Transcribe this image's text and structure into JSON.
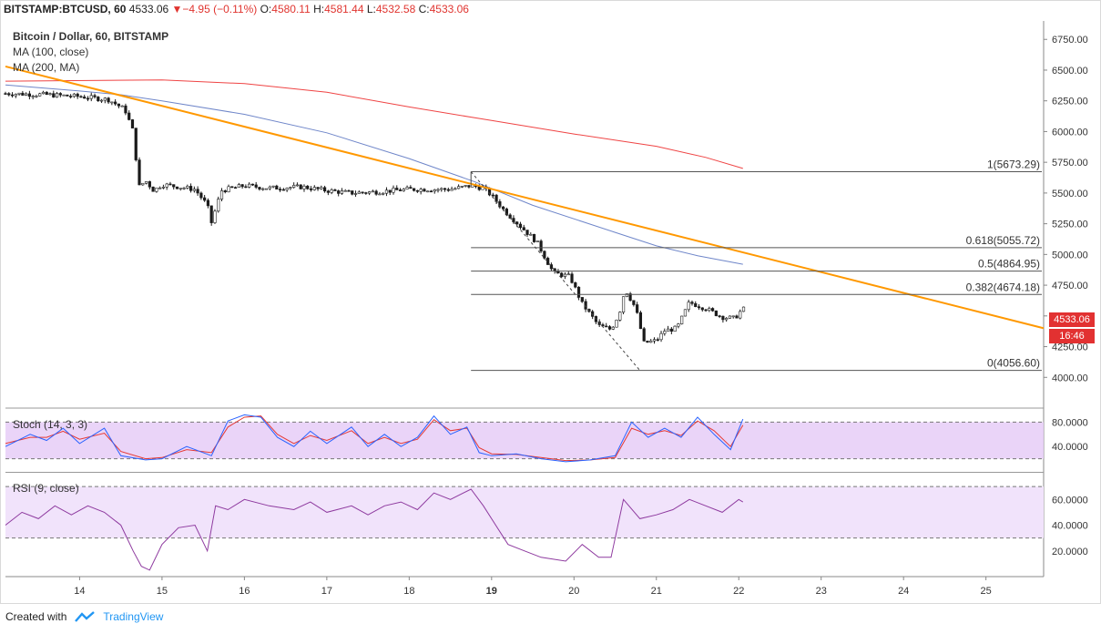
{
  "header": {
    "symbol": "BITSTAMP:BTCUSD, 60",
    "last": "4533.06",
    "change": "▼−4.95 (−0.11%)",
    "o_label": "O:",
    "o": "4580.11",
    "h_label": "H:",
    "h": "4581.44",
    "l_label": "L:",
    "l": "4532.58",
    "c_label": "C:",
    "c": "4533.06"
  },
  "legend": {
    "title": "Bitcoin / Dollar, 60, BITSTAMP",
    "ma100": "MA (100, close)",
    "ma200": "MA (200, MA)"
  },
  "price_tag": {
    "price": "4533.06",
    "countdown": "16:46"
  },
  "stoch_label": "Stoch (14, 3, 3)",
  "rsi_label": "RSI (9, close)",
  "footer": {
    "created": "Created with",
    "brand": "TradingView"
  },
  "colors": {
    "up": "#26a69a",
    "down": "#e0342f",
    "candle": "#1b1b1b",
    "ma100": "#6f86c9",
    "ma200": "#ef4444",
    "trend": "#ff9800",
    "stoch_k": "#2962ff",
    "stoch_d": "#e53935",
    "rsi": "#8e3a9f",
    "panel": "#e6cdf7"
  },
  "chart_data": [
    {
      "type": "candlestick",
      "title": "Bitcoin / Dollar, 60, BITSTAMP",
      "ylim": [
        3750,
        6900
      ],
      "y_ticks": [
        "6750.00",
        "6500.00",
        "6250.00",
        "6000.00",
        "5750.00",
        "5500.00",
        "5250.00",
        "5000.00",
        "4750.00",
        "4500.00",
        "4250.00",
        "4000.00"
      ],
      "y_tick_values": [
        6750,
        6500,
        6250,
        6000,
        5750,
        5500,
        5250,
        5000,
        4750,
        4500,
        4250,
        4000
      ],
      "x_ticks": [
        "14",
        "15",
        "16",
        "17",
        "18",
        "19",
        "20",
        "21",
        "22",
        "23",
        "24",
        "25"
      ],
      "x_tick_values": [
        14,
        15,
        16,
        17,
        18,
        19,
        20,
        21,
        22,
        23,
        24,
        25
      ],
      "xlim": [
        13.1,
        25.7
      ],
      "close_path": [
        [
          13.1,
          6310
        ],
        [
          13.6,
          6300
        ],
        [
          14.0,
          6285
        ],
        [
          14.35,
          6260
        ],
        [
          14.55,
          6180
        ],
        [
          14.65,
          6000
        ],
        [
          14.72,
          5550
        ],
        [
          14.8,
          5600
        ],
        [
          14.9,
          5520
        ],
        [
          15.0,
          5570
        ],
        [
          15.2,
          5550
        ],
        [
          15.4,
          5530
        ],
        [
          15.55,
          5400
        ],
        [
          15.6,
          5260
        ],
        [
          15.72,
          5520
        ],
        [
          16.0,
          5560
        ],
        [
          16.3,
          5540
        ],
        [
          16.7,
          5550
        ],
        [
          17.0,
          5520
        ],
        [
          17.3,
          5500
        ],
        [
          17.6,
          5510
        ],
        [
          18.0,
          5530
        ],
        [
          18.5,
          5530
        ],
        [
          18.75,
          5560
        ],
        [
          18.9,
          5540
        ],
        [
          19.0,
          5480
        ],
        [
          19.15,
          5360
        ],
        [
          19.35,
          5230
        ],
        [
          19.55,
          5100
        ],
        [
          19.75,
          4850
        ],
        [
          19.95,
          4820
        ],
        [
          20.1,
          4600
        ],
        [
          20.3,
          4420
        ],
        [
          20.45,
          4390
        ],
        [
          20.55,
          4520
        ],
        [
          20.62,
          4720
        ],
        [
          20.75,
          4560
        ],
        [
          20.85,
          4280
        ],
        [
          21.0,
          4300
        ],
        [
          21.1,
          4380
        ],
        [
          21.25,
          4400
        ],
        [
          21.4,
          4610
        ],
        [
          21.6,
          4560
        ],
        [
          21.8,
          4490
        ],
        [
          21.95,
          4480
        ],
        [
          22.05,
          4560
        ],
        [
          22.1,
          4533
        ]
      ],
      "ma100": [
        [
          13.1,
          6380
        ],
        [
          14.0,
          6330
        ],
        [
          14.5,
          6300
        ],
        [
          15.0,
          6250
        ],
        [
          16.0,
          6140
        ],
        [
          17.0,
          5990
        ],
        [
          18.0,
          5780
        ],
        [
          18.8,
          5590
        ],
        [
          19.5,
          5400
        ],
        [
          20.5,
          5180
        ],
        [
          21.0,
          5070
        ],
        [
          21.5,
          4990
        ],
        [
          22.05,
          4920
        ]
      ],
      "ma200": [
        [
          13.1,
          6410
        ],
        [
          15.0,
          6420
        ],
        [
          16.0,
          6390
        ],
        [
          17.0,
          6320
        ],
        [
          18.0,
          6200
        ],
        [
          19.0,
          6090
        ],
        [
          20.0,
          5980
        ],
        [
          21.0,
          5880
        ],
        [
          21.6,
          5790
        ],
        [
          22.05,
          5700
        ]
      ],
      "trendline": [
        [
          13.1,
          6530
        ],
        [
          25.7,
          4400
        ]
      ],
      "fibonacci": {
        "from": 18.75,
        "to": 25.7,
        "levels": [
          {
            "label": "1(5673.29)",
            "value": 5673.29
          },
          {
            "label": "0.618(5055.72)",
            "value": 5055.72
          },
          {
            "label": "0.5(4864.95)",
            "value": 4864.95
          },
          {
            "label": "0.382(4674.18)",
            "value": 4674.18
          },
          {
            "label": "0(4056.60)",
            "value": 4056.6
          }
        ],
        "diagonal": [
          [
            18.75,
            5673.29
          ],
          [
            20.8,
            4056.6
          ]
        ]
      }
    },
    {
      "type": "line",
      "title": "Stoch (14, 3, 3)",
      "ylim": [
        0,
        100
      ],
      "y_ticks": [
        "80.0000",
        "40.0000"
      ],
      "y_tick_values": [
        80,
        40
      ],
      "bands": [
        80,
        20
      ],
      "series": [
        {
          "name": "%K",
          "points": [
            [
              13.1,
              40
            ],
            [
              13.4,
              60
            ],
            [
              13.6,
              50
            ],
            [
              13.8,
              70
            ],
            [
              14.0,
              45
            ],
            [
              14.3,
              70
            ],
            [
              14.5,
              25
            ],
            [
              14.8,
              18
            ],
            [
              15.0,
              20
            ],
            [
              15.3,
              40
            ],
            [
              15.6,
              25
            ],
            [
              15.8,
              82
            ],
            [
              16.0,
              92
            ],
            [
              16.2,
              88
            ],
            [
              16.4,
              55
            ],
            [
              16.6,
              40
            ],
            [
              16.8,
              65
            ],
            [
              17.0,
              45
            ],
            [
              17.3,
              72
            ],
            [
              17.5,
              40
            ],
            [
              17.7,
              60
            ],
            [
              17.9,
              40
            ],
            [
              18.1,
              55
            ],
            [
              18.3,
              90
            ],
            [
              18.5,
              60
            ],
            [
              18.7,
              72
            ],
            [
              18.85,
              30
            ],
            [
              19.0,
              25
            ],
            [
              19.3,
              28
            ],
            [
              19.6,
              20
            ],
            [
              19.9,
              15
            ],
            [
              20.2,
              18
            ],
            [
              20.5,
              25
            ],
            [
              20.7,
              80
            ],
            [
              20.9,
              55
            ],
            [
              21.1,
              70
            ],
            [
              21.3,
              55
            ],
            [
              21.5,
              88
            ],
            [
              21.7,
              60
            ],
            [
              21.9,
              35
            ],
            [
              22.05,
              85
            ]
          ]
        },
        {
          "name": "%D",
          "points": [
            [
              13.1,
              45
            ],
            [
              13.4,
              55
            ],
            [
              13.6,
              55
            ],
            [
              13.8,
              65
            ],
            [
              14.0,
              52
            ],
            [
              14.3,
              62
            ],
            [
              14.5,
              32
            ],
            [
              14.8,
              20
            ],
            [
              15.0,
              22
            ],
            [
              15.3,
              35
            ],
            [
              15.6,
              30
            ],
            [
              15.8,
              72
            ],
            [
              16.0,
              88
            ],
            [
              16.2,
              90
            ],
            [
              16.4,
              60
            ],
            [
              16.6,
              45
            ],
            [
              16.8,
              58
            ],
            [
              17.0,
              50
            ],
            [
              17.3,
              66
            ],
            [
              17.5,
              45
            ],
            [
              17.7,
              55
            ],
            [
              17.9,
              45
            ],
            [
              18.1,
              52
            ],
            [
              18.3,
              84
            ],
            [
              18.5,
              66
            ],
            [
              18.7,
              70
            ],
            [
              18.85,
              38
            ],
            [
              19.0,
              28
            ],
            [
              19.3,
              27
            ],
            [
              19.6,
              22
            ],
            [
              19.9,
              17
            ],
            [
              20.2,
              18
            ],
            [
              20.5,
              22
            ],
            [
              20.7,
              70
            ],
            [
              20.9,
              60
            ],
            [
              21.1,
              66
            ],
            [
              21.3,
              58
            ],
            [
              21.5,
              82
            ],
            [
              21.7,
              66
            ],
            [
              21.9,
              40
            ],
            [
              22.05,
              75
            ]
          ]
        }
      ]
    },
    {
      "type": "line",
      "title": "RSI (9, close)",
      "ylim": [
        0,
        80
      ],
      "y_ticks": [
        "60.0000",
        "40.0000",
        "20.0000"
      ],
      "y_tick_values": [
        60,
        40,
        20
      ],
      "bands": [
        70,
        30
      ],
      "series": [
        {
          "name": "RSI",
          "points": [
            [
              13.1,
              40
            ],
            [
              13.3,
              50
            ],
            [
              13.5,
              45
            ],
            [
              13.7,
              55
            ],
            [
              13.9,
              48
            ],
            [
              14.1,
              55
            ],
            [
              14.3,
              50
            ],
            [
              14.5,
              40
            ],
            [
              14.65,
              20
            ],
            [
              14.75,
              8
            ],
            [
              14.85,
              5
            ],
            [
              15.0,
              25
            ],
            [
              15.2,
              38
            ],
            [
              15.4,
              40
            ],
            [
              15.55,
              20
            ],
            [
              15.65,
              55
            ],
            [
              15.8,
              52
            ],
            [
              16.0,
              60
            ],
            [
              16.3,
              55
            ],
            [
              16.6,
              52
            ],
            [
              16.8,
              58
            ],
            [
              17.0,
              50
            ],
            [
              17.3,
              55
            ],
            [
              17.5,
              48
            ],
            [
              17.7,
              55
            ],
            [
              17.9,
              58
            ],
            [
              18.1,
              52
            ],
            [
              18.3,
              65
            ],
            [
              18.5,
              60
            ],
            [
              18.75,
              68
            ],
            [
              18.9,
              55
            ],
            [
              19.05,
              40
            ],
            [
              19.2,
              25
            ],
            [
              19.4,
              20
            ],
            [
              19.6,
              15
            ],
            [
              19.9,
              12
            ],
            [
              20.1,
              25
            ],
            [
              20.3,
              15
            ],
            [
              20.45,
              15
            ],
            [
              20.6,
              60
            ],
            [
              20.8,
              45
            ],
            [
              21.0,
              48
            ],
            [
              21.2,
              52
            ],
            [
              21.4,
              60
            ],
            [
              21.6,
              55
            ],
            [
              21.8,
              50
            ],
            [
              22.0,
              60
            ],
            [
              22.05,
              58
            ]
          ]
        }
      ]
    }
  ]
}
